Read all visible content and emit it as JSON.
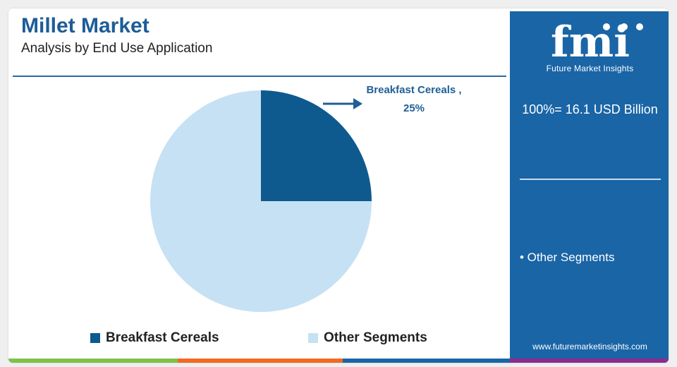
{
  "header": {
    "title": "Millet Market",
    "subtitle": "Analysis by End Use Application"
  },
  "chart_data": {
    "type": "pie",
    "categories": [
      "Breakfast Cereals",
      "Other Segments"
    ],
    "values": [
      25,
      75
    ],
    "colors": [
      "#0e5a8f",
      "#c6e1f3"
    ],
    "annotation": {
      "label_line1": "Breakfast Cereals ,",
      "label_line2": "25%"
    },
    "legend": {
      "placement": "bottom",
      "items": [
        "Breakfast Cereals",
        "Other Segments"
      ]
    }
  },
  "side_panel": {
    "logo_text": "fmi",
    "logo_subtitle": "Future Market Insights",
    "total": "100%= 16.1 USD Billion",
    "item": "• Other Segments",
    "url": "www.futuremarketinsights.com",
    "background_color": "#1a65a6"
  },
  "bottom_bar_colors": [
    "#7dc24b",
    "#f26a21",
    "#1a65a6",
    "#8b2c8f"
  ]
}
